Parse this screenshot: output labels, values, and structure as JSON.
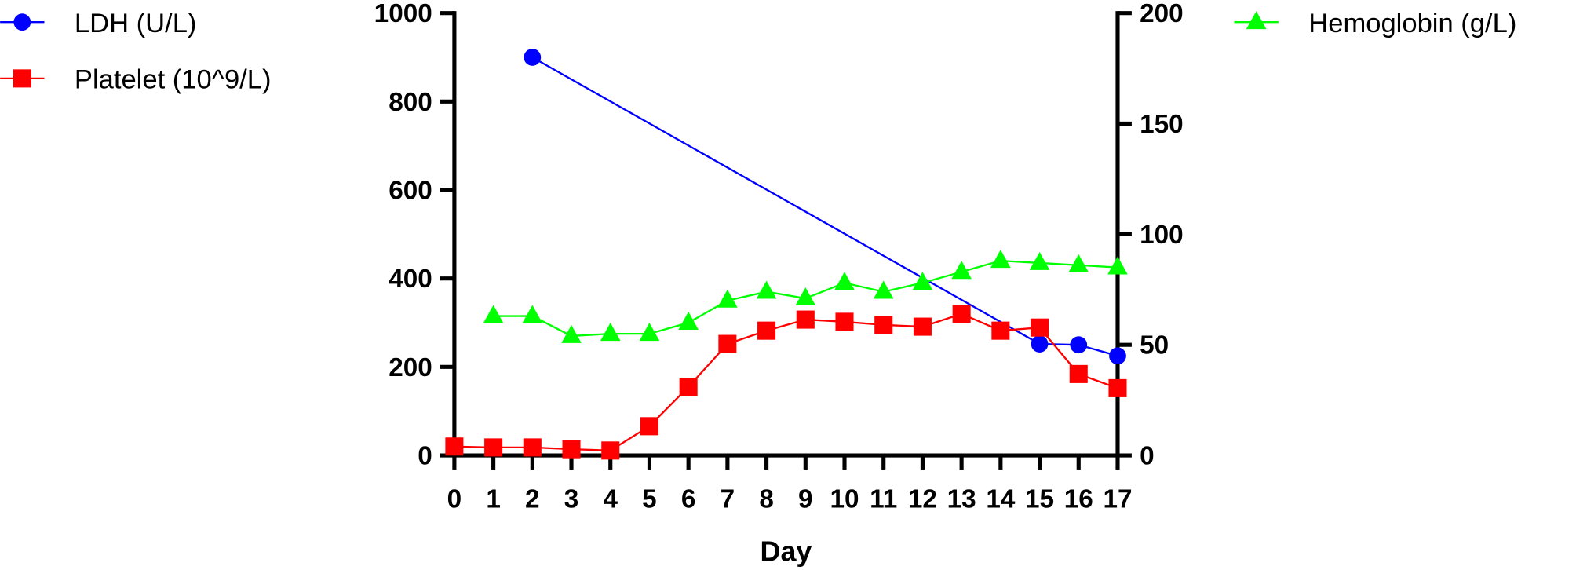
{
  "chart_data": {
    "type": "line",
    "title": "",
    "xlabel": "Day",
    "ylabel_left": "",
    "ylabel_right": "",
    "x": [
      0,
      1,
      2,
      3,
      4,
      5,
      6,
      7,
      8,
      9,
      10,
      11,
      12,
      13,
      14,
      15,
      16,
      17
    ],
    "x_ticks": [
      "0",
      "1",
      "2",
      "3",
      "4",
      "5",
      "6",
      "7",
      "8",
      "9",
      "10",
      "11",
      "12",
      "13",
      "14",
      "15",
      "16",
      "17"
    ],
    "ylim_left": [
      0,
      1000
    ],
    "y_ticks_left": [
      "0",
      "200",
      "400",
      "600",
      "800",
      "1000"
    ],
    "ylim_right": [
      0,
      200
    ],
    "y_ticks_right": [
      "0",
      "50",
      "100",
      "150",
      "200"
    ],
    "grid": false,
    "series": [
      {
        "name": "LDH (U/L)",
        "axis": "left",
        "color": "#0000ff",
        "marker": "circle",
        "points": [
          [
            2,
            900
          ],
          [
            15,
            252
          ],
          [
            16,
            250
          ],
          [
            17,
            225
          ]
        ]
      },
      {
        "name": "Platelet (10^9/L)",
        "axis": "left",
        "color": "#ff0000",
        "marker": "square",
        "points": [
          [
            0,
            20
          ],
          [
            1,
            18
          ],
          [
            2,
            18
          ],
          [
            3,
            14
          ],
          [
            4,
            11
          ],
          [
            5,
            66
          ],
          [
            6,
            155
          ],
          [
            7,
            252
          ],
          [
            8,
            282
          ],
          [
            9,
            307
          ],
          [
            10,
            302
          ],
          [
            11,
            295
          ],
          [
            12,
            291
          ],
          [
            13,
            320
          ],
          [
            14,
            282
          ],
          [
            15,
            289
          ],
          [
            16,
            184
          ],
          [
            17,
            152
          ]
        ]
      },
      {
        "name": "Hemoglobin (g/L)",
        "axis": "right",
        "color": "#00ff00",
        "marker": "triangle",
        "points": [
          [
            1,
            63
          ],
          [
            2,
            63
          ],
          [
            3,
            54
          ],
          [
            4,
            55
          ],
          [
            5,
            55
          ],
          [
            6,
            60
          ],
          [
            7,
            70
          ],
          [
            8,
            74
          ],
          [
            9,
            71
          ],
          [
            10,
            78
          ],
          [
            11,
            74
          ],
          [
            12,
            78
          ],
          [
            13,
            83
          ],
          [
            14,
            88
          ],
          [
            15,
            87
          ],
          [
            16,
            86
          ],
          [
            17,
            85
          ]
        ]
      }
    ],
    "legend": [
      "top-left",
      "top-left",
      "top-right"
    ]
  }
}
